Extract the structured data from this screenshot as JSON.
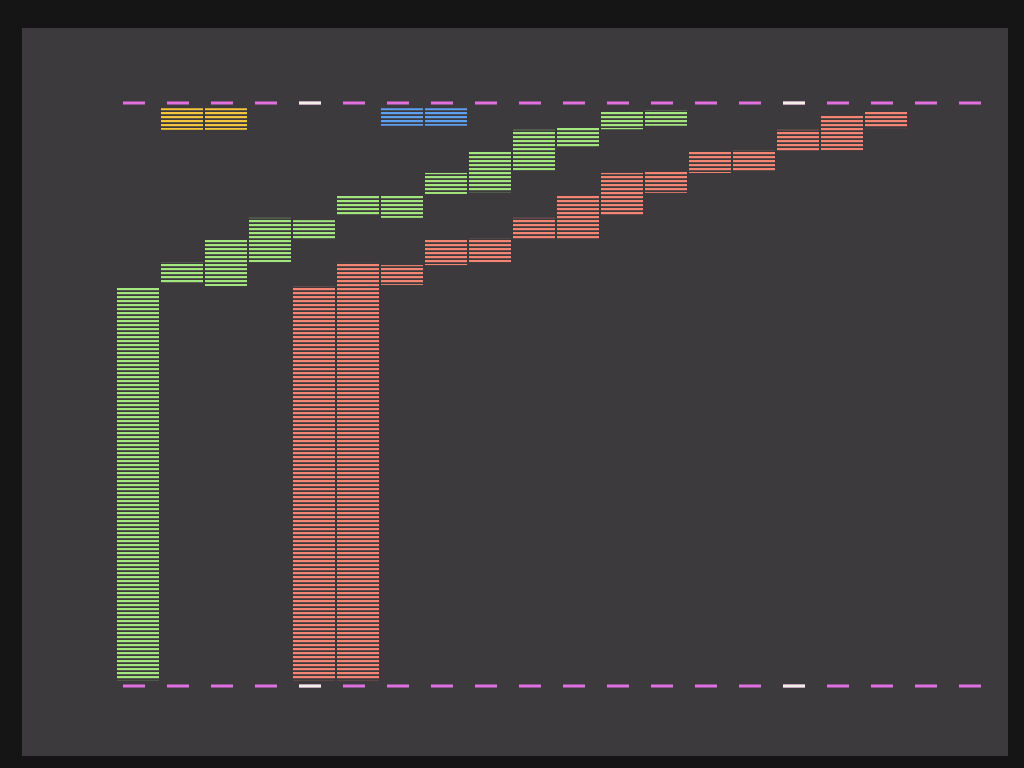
{
  "chart_data": {
    "type": "bar",
    "grid": true,
    "tick_labels": false,
    "categories": [
      null,
      null,
      null,
      null,
      null,
      null,
      null,
      null,
      null,
      null,
      null,
      null,
      null,
      null,
      null,
      null,
      null,
      null,
      null
    ],
    "ylim": [
      0,
      100
    ],
    "yticks": [
      0,
      100
    ],
    "series": [
      {
        "color": "#a4e67e",
        "values": [
          68.3,
          72.7,
          76.5,
          80.3,
          79.9,
          84.2,
          84.2,
          88.0,
          91.6,
          95.4,
          95.9,
          98.5,
          98.8,
          null,
          null,
          null,
          null,
          null,
          null
        ],
        "base": [
          1,
          69.0,
          68.6,
          72.7,
          76.5,
          80.8,
          80.3,
          84.4,
          84.7,
          88.4,
          92.3,
          95.5,
          96.1,
          null,
          null,
          null,
          null,
          null,
          null
        ]
      },
      {
        "color": "#f58472",
        "values": [
          null,
          null,
          null,
          null,
          68.6,
          72.6,
          72.2,
          76.5,
          76.8,
          80.3,
          84.2,
          88.0,
          88.2,
          91.6,
          91.9,
          95.4,
          97.9,
          98.5,
          null
        ],
        "base": [
          null,
          null,
          null,
          null,
          1,
          1,
          68.8,
          72.2,
          72.7,
          76.5,
          76.5,
          80.8,
          84.6,
          88.0,
          88.2,
          91.6,
          91.9,
          95.7,
          null
        ]
      },
      {
        "color": "#f2c53c",
        "values": [
          null,
          99.1,
          99.1,
          null,
          null,
          null,
          null,
          null,
          null,
          null,
          null,
          null,
          null,
          null,
          null,
          null,
          null,
          null,
          null
        ],
        "base": [
          null,
          95.4,
          95.4,
          null,
          null,
          null,
          null,
          null,
          null,
          null,
          null,
          null,
          null,
          null,
          null,
          null,
          null,
          null,
          null
        ]
      },
      {
        "color": "#5d9ff0",
        "values": [
          null,
          null,
          null,
          null,
          null,
          null,
          99.1,
          99.1,
          null,
          null,
          null,
          null,
          null,
          null,
          null,
          null,
          null,
          null,
          null
        ],
        "base": [
          null,
          null,
          null,
          null,
          null,
          null,
          96.1,
          96.1,
          null,
          null,
          null,
          null,
          null,
          null,
          null,
          null,
          null,
          null,
          null
        ]
      }
    ]
  }
}
